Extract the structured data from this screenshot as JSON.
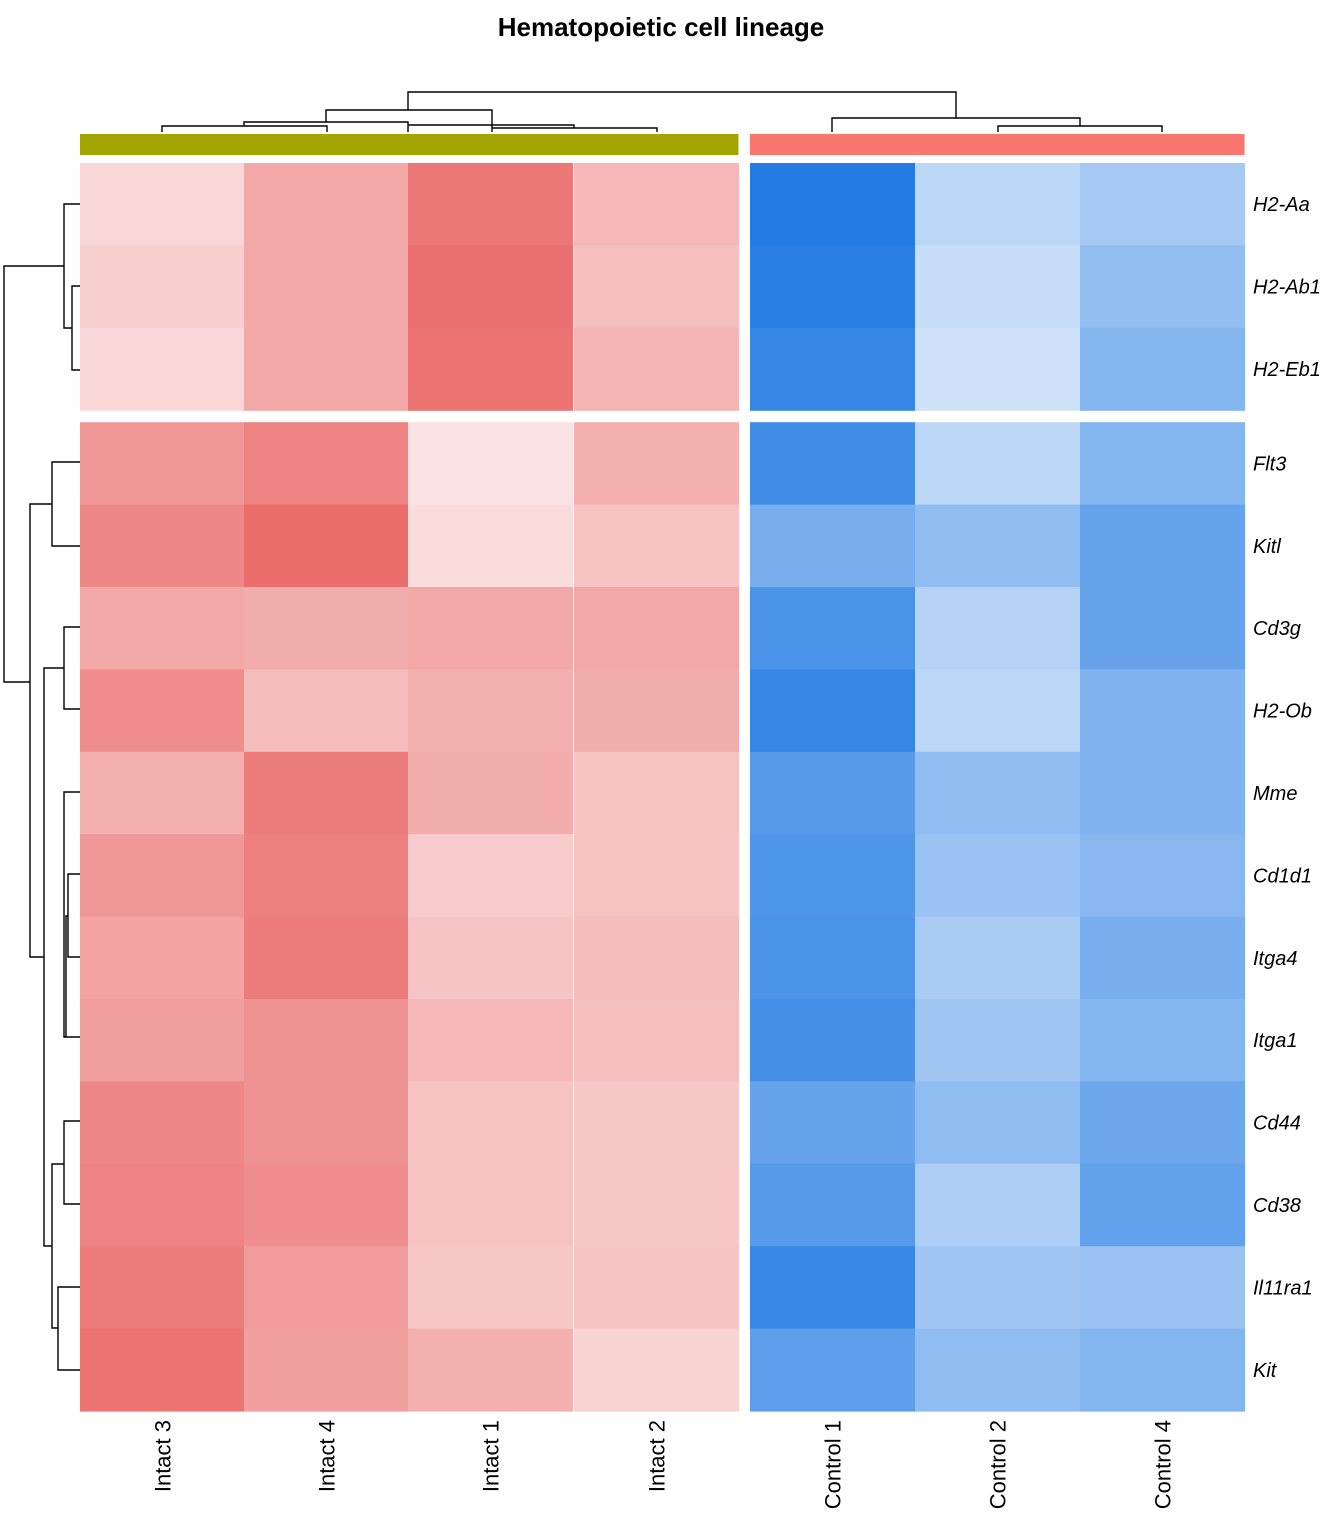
{
  "chart_data": {
    "type": "heatmap",
    "title": "Hematopoietic cell lineage",
    "columns": [
      "Intact 3",
      "Intact 4",
      "Intact 1",
      "Intact 2",
      "Control 1",
      "Control 2",
      "Control 4"
    ],
    "column_groups": [
      {
        "name": "Intact",
        "color": "#A3A500",
        "columns": [
          "Intact 3",
          "Intact 4",
          "Intact 1",
          "Intact 2"
        ]
      },
      {
        "name": "Control",
        "color": "#F8766D",
        "columns": [
          "Control 1",
          "Control 2",
          "Control 4"
        ]
      }
    ],
    "rows": [
      "H2-Aa",
      "H2-Ab1",
      "H2-Eb1",
      "Flt3",
      "Kitl",
      "Cd3g",
      "H2-Ob",
      "Mme",
      "Cd1d1",
      "Itga4",
      "Itga1",
      "Cd44",
      "Cd38",
      "Il11ra1",
      "Kit"
    ],
    "row_split_after": 3,
    "color_scale": {
      "low": "#1E78E2",
      "mid": "#FFFFFF",
      "high": "#E8605F"
    },
    "values": [
      [
        0.25,
        0.55,
        0.85,
        0.45,
        -0.98,
        -0.3,
        -0.4
      ],
      [
        0.3,
        0.55,
        0.9,
        0.4,
        -0.95,
        -0.25,
        -0.48
      ],
      [
        0.25,
        0.55,
        0.88,
        0.47,
        -0.9,
        -0.22,
        -0.55
      ],
      [
        0.65,
        0.78,
        0.18,
        0.5,
        -0.85,
        -0.3,
        -0.55
      ],
      [
        0.75,
        0.92,
        0.22,
        0.38,
        -0.6,
        -0.5,
        -0.68
      ],
      [
        0.55,
        0.52,
        0.55,
        0.55,
        -0.8,
        -0.33,
        -0.68
      ],
      [
        0.72,
        0.42,
        0.5,
        0.52,
        -0.9,
        -0.3,
        -0.57
      ],
      [
        0.5,
        0.82,
        0.52,
        0.38,
        -0.75,
        -0.5,
        -0.57
      ],
      [
        0.65,
        0.8,
        0.32,
        0.38,
        -0.78,
        -0.45,
        -0.53
      ],
      [
        0.58,
        0.82,
        0.37,
        0.42,
        -0.8,
        -0.38,
        -0.6
      ],
      [
        0.6,
        0.68,
        0.45,
        0.4,
        -0.82,
        -0.42,
        -0.55
      ],
      [
        0.75,
        0.68,
        0.38,
        0.35,
        -0.68,
        -0.5,
        -0.65
      ],
      [
        0.78,
        0.72,
        0.38,
        0.35,
        -0.75,
        -0.36,
        -0.7
      ],
      [
        0.82,
        0.62,
        0.35,
        0.37,
        -0.88,
        -0.42,
        -0.45
      ],
      [
        0.88,
        0.6,
        0.5,
        0.28,
        -0.72,
        -0.5,
        -0.55
      ]
    ],
    "row_dendrogram": "hierarchical clustering of rows",
    "column_dendrogram": "hierarchical clustering of columns"
  }
}
